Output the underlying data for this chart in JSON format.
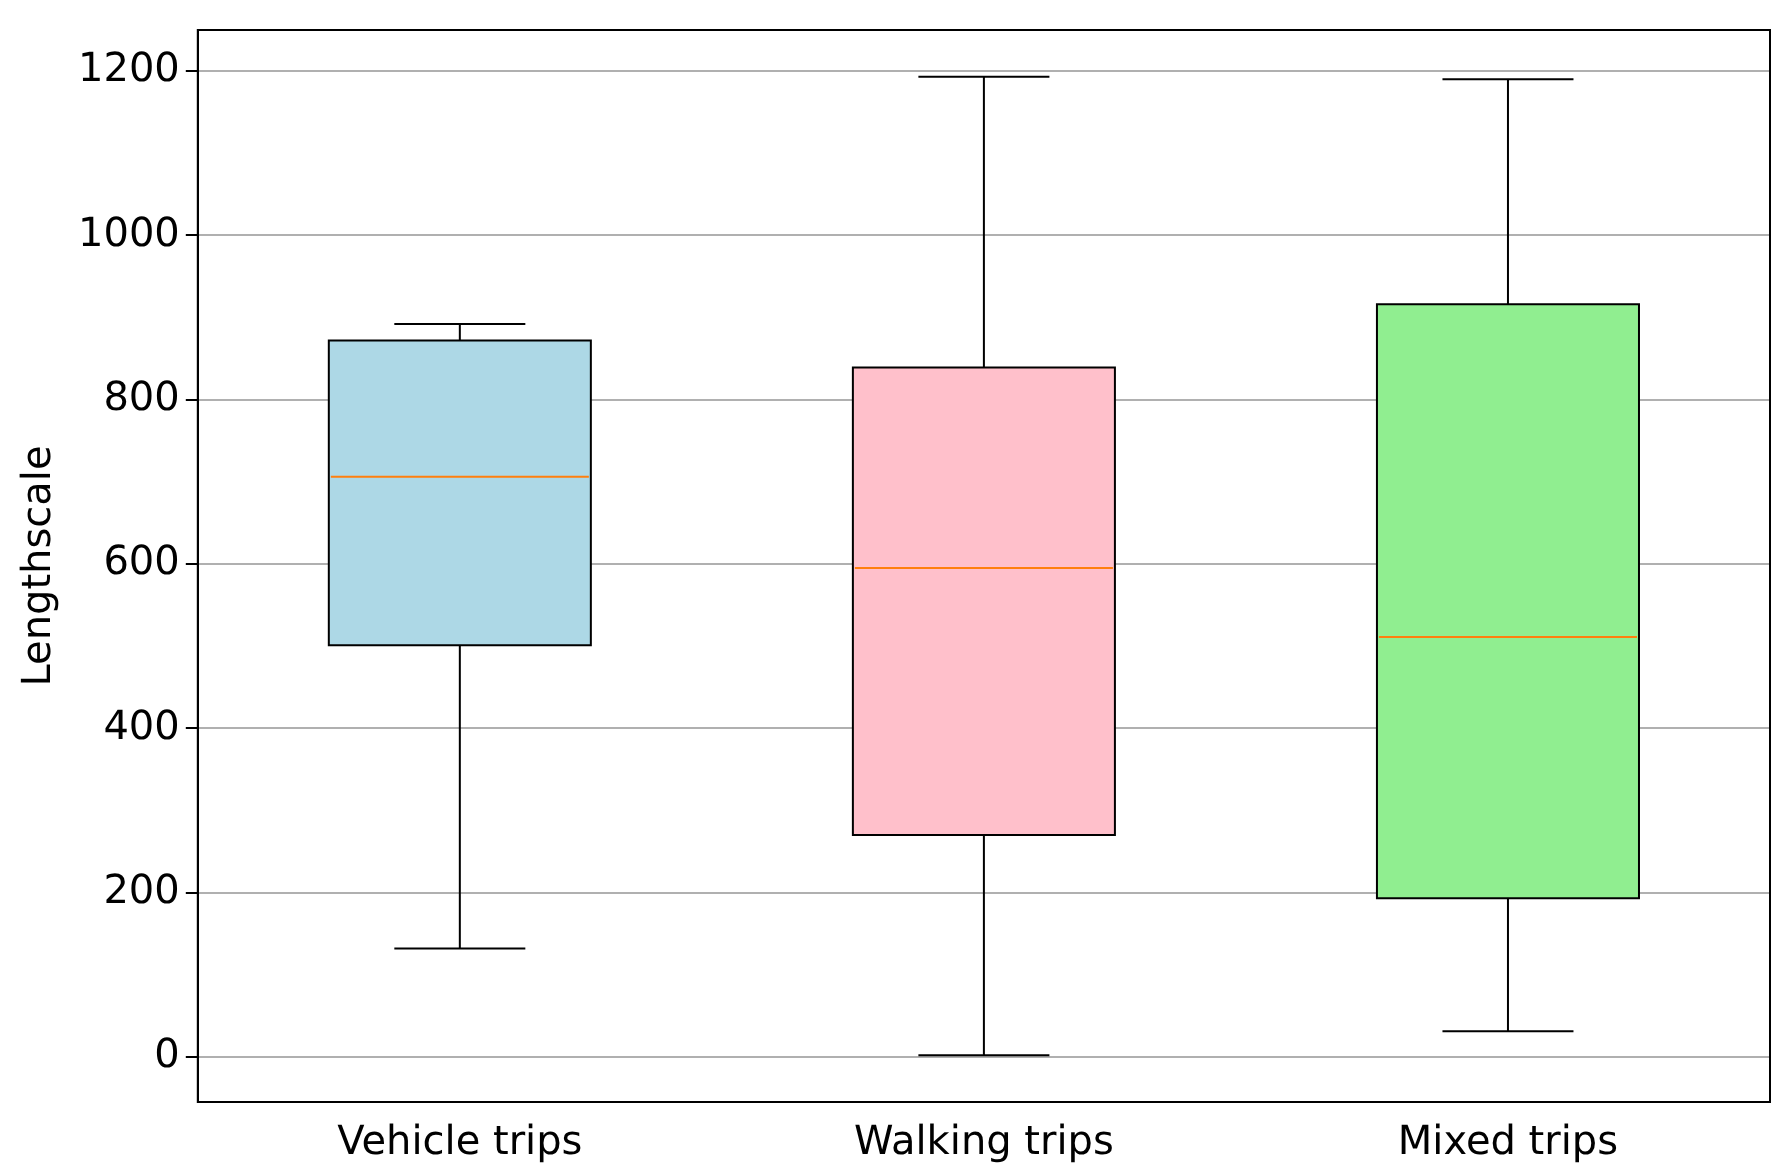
{
  "chart_data": {
    "type": "box",
    "ylabel": "Lengthscale",
    "categories": [
      "Vehicle trips",
      "Walking trips",
      "Mixed trips"
    ],
    "colors": [
      "#add8e6",
      "#ffc0cb",
      "#90ee90"
    ],
    "boxes": [
      {
        "low": 132,
        "q1": 501,
        "median": 706,
        "q3": 872,
        "high": 892
      },
      {
        "low": 2,
        "q1": 270,
        "median": 595,
        "q3": 839,
        "high": 1193
      },
      {
        "low": 31,
        "q1": 193,
        "median": 511,
        "q3": 916,
        "high": 1190
      }
    ],
    "ylim": [
      -55,
      1250
    ],
    "yticks": [
      0,
      200,
      400,
      600,
      800,
      1000,
      1200
    ],
    "grid": "y"
  }
}
